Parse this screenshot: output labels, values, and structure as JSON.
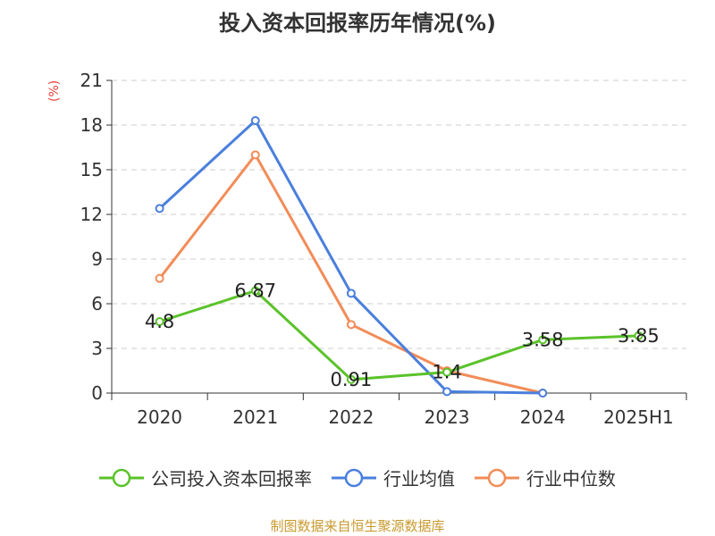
{
  "title": "投入资本回报率历年情况(%)",
  "unit_label": "(%)",
  "source": "制图数据来自恒生聚源数据库",
  "chart_data": {
    "type": "line",
    "title": "投入资本回报率历年情况(%)",
    "ylabel": "(%)",
    "categories": [
      "2020",
      "2021",
      "2022",
      "2023",
      "2024",
      "2025H1"
    ],
    "ylim": [
      0,
      21
    ],
    "yticks": [
      0,
      3,
      6,
      9,
      12,
      15,
      18,
      21
    ],
    "grid": true,
    "legend_position": "bottom",
    "series": [
      {
        "name": "公司投入资本回报率",
        "color": "#5ac22a",
        "labels": true,
        "values": [
          4.8,
          6.87,
          0.91,
          1.4,
          3.58,
          3.85
        ]
      },
      {
        "name": "行业均值",
        "color": "#4a7fdc",
        "labels": false,
        "values": [
          12.4,
          18.3,
          6.7,
          0.1,
          0.0,
          null
        ]
      },
      {
        "name": "行业中位数",
        "color": "#f28c58",
        "labels": false,
        "values": [
          7.7,
          16.0,
          4.6,
          1.5,
          0.0,
          null
        ]
      }
    ]
  }
}
